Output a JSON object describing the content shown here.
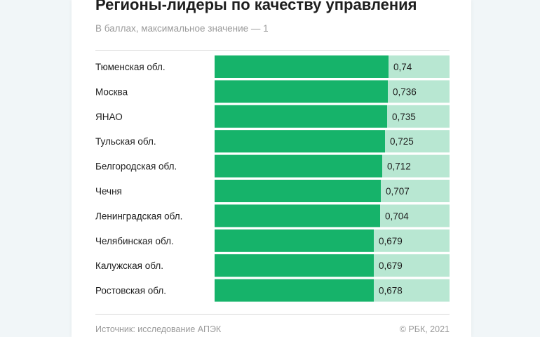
{
  "title": "Регионы-лидеры по качеству управления",
  "subtitle": "В баллах, максимальное значение — 1",
  "source": "Источник: исследование АПЭК",
  "credit": "© РБК, 2021",
  "colors": {
    "bar": "#16b36a",
    "background_bar": "#b8e7d2",
    "text": "#1e1e1e",
    "muted": "#9a9a9a"
  },
  "chart_data": {
    "type": "bar",
    "orientation": "horizontal",
    "title": "Регионы-лидеры по качеству управления",
    "subtitle": "В баллах, максимальное значение — 1",
    "categories": [
      "Тюменская обл.",
      "Москва",
      "ЯНАО",
      "Тульская обл.",
      "Белгородская обл.",
      "Чечня",
      "Ленинградская обл.",
      "Челябинская обл.",
      "Калужская обл.",
      "Ростовская обл."
    ],
    "values": [
      0.74,
      0.736,
      0.735,
      0.725,
      0.712,
      0.707,
      0.704,
      0.679,
      0.679,
      0.678
    ],
    "value_labels": [
      "0,74",
      "0,736",
      "0,735",
      "0,725",
      "0,712",
      "0,707",
      "0,704",
      "0,679",
      "0,679",
      "0,678"
    ],
    "xlim": [
      0,
      1
    ],
    "grid": false,
    "legend": "none"
  }
}
